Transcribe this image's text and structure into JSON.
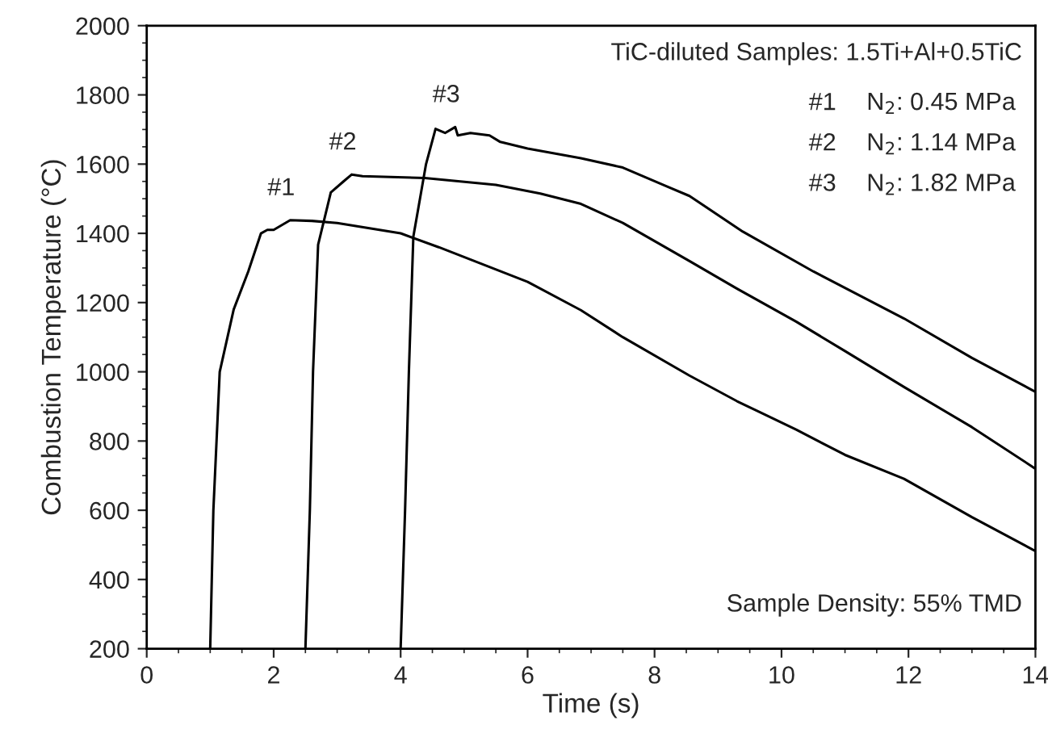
{
  "chart_data": {
    "type": "line",
    "xlabel": "Time (s)",
    "ylabel": "Combustion Temperature (°C)",
    "xlim": [
      0,
      14
    ],
    "ylim": [
      200,
      2000
    ],
    "xticks": [
      0,
      2,
      4,
      6,
      8,
      10,
      12,
      14
    ],
    "yticks": [
      200,
      400,
      600,
      800,
      1000,
      1200,
      1400,
      1600,
      1800,
      2000
    ],
    "grid": false,
    "legend": false,
    "marker": "none",
    "line_style": "solid",
    "series": [
      {
        "name": "#1",
        "color": "#000000",
        "x": [
          1.0,
          1.05,
          1.15,
          1.37,
          1.6,
          1.8,
          1.9,
          2.0,
          2.26,
          2.6,
          3.0,
          4.0,
          4.6,
          5.3,
          6.0,
          6.84,
          7.5,
          8.55,
          9.3,
          10.23,
          11.0,
          11.93,
          13.0,
          14.0
        ],
        "values": [
          200,
          600,
          1000,
          1180,
          1290,
          1400,
          1410,
          1410,
          1438,
          1436,
          1430,
          1400,
          1360,
          1310,
          1260,
          1178,
          1100,
          989,
          915,
          833,
          760,
          691,
          580,
          482
        ]
      },
      {
        "name": "#2",
        "color": "#000000",
        "x": [
          2.5,
          2.57,
          2.62,
          2.7,
          2.9,
          3.1,
          3.23,
          3.4,
          4.38,
          5.5,
          6.2,
          6.84,
          7.5,
          8.55,
          9.3,
          10.23,
          11.0,
          11.93,
          13.0,
          14.0
        ],
        "values": [
          200,
          600,
          1000,
          1367,
          1518,
          1550,
          1570,
          1565,
          1560,
          1540,
          1515,
          1485,
          1430,
          1320,
          1240,
          1145,
          1060,
          956,
          840,
          720
        ]
      },
      {
        "name": "#3",
        "color": "#000000",
        "x": [
          4.0,
          4.07,
          4.13,
          4.2,
          4.4,
          4.55,
          4.7,
          4.86,
          4.9,
          5.1,
          5.4,
          5.57,
          6.0,
          6.84,
          7.5,
          8.2,
          8.55,
          9.39,
          10.5,
          11.93,
          13.0,
          14.0
        ],
        "values": [
          200,
          600,
          1000,
          1390,
          1600,
          1702,
          1690,
          1707,
          1683,
          1690,
          1683,
          1664,
          1645,
          1617,
          1590,
          1535,
          1508,
          1405,
          1290,
          1154,
          1040,
          942
        ]
      }
    ],
    "annotations": [
      "TiC-diluted Samples: 1.5Ti+Al+0.5TiC",
      "#1",
      "N$_{2}$: 0.45 MPa",
      "#2",
      "N$_{2}$: 1.14 MPa",
      "#3",
      "N$_{2}$: 1.82 MPa",
      "Sample Density: 55% TMD"
    ]
  }
}
